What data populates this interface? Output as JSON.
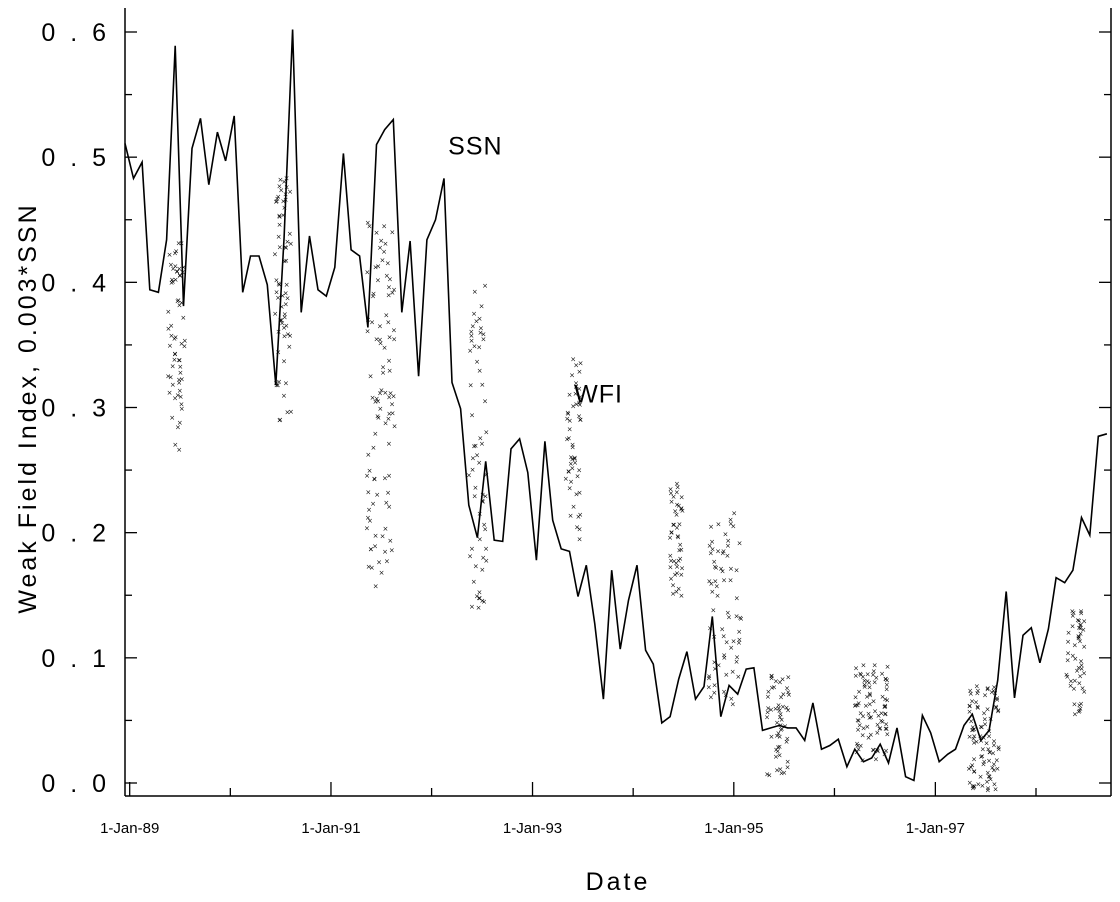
{
  "chart_data": {
    "type": "line",
    "xlabel": "Date",
    "ylabel": "Weak  Field  Index,  0.003*SSN",
    "xlim": [
      "1988-12-15",
      "1998-09-30"
    ],
    "ylim": [
      0.0,
      0.6
    ],
    "x_ticks": [
      "1989-01-01",
      "1991-01-01",
      "1993-01-01",
      "1995-01-01",
      "1997-01-01"
    ],
    "x_tick_labels": [
      "1-Jan-89",
      "1-Jan-91",
      "1-Jan-93",
      "1-Jan-95",
      "1-Jan-97"
    ],
    "y_ticks": [
      0.0,
      0.1,
      0.2,
      0.3,
      0.4,
      0.5,
      0.6
    ],
    "y_tick_labels": [
      "0 . 0",
      "0 . 1",
      "0 . 2",
      "0 . 3",
      "0 . 4",
      "0 . 5",
      "0 . 6"
    ],
    "annotations": [
      {
        "text": "SSN",
        "x": "1992-03-01",
        "y": 0.502
      },
      {
        "text": "WFI",
        "x": "1993-06-01",
        "y": 0.304
      }
    ],
    "series": [
      {
        "style": "line",
        "x": [
          "1988-12-15",
          "1989-01-15",
          "1989-02-15",
          "1989-03-15",
          "1989-04-15",
          "1989-05-15",
          "1989-06-15",
          "1989-07-15",
          "1989-08-15",
          "1989-09-15",
          "1989-10-15",
          "1989-11-15",
          "1989-12-15",
          "1990-01-15",
          "1990-02-15",
          "1990-03-15",
          "1990-04-15",
          "1990-05-15",
          "1990-06-15",
          "1990-07-15",
          "1990-08-15",
          "1990-09-15",
          "1990-10-15",
          "1990-11-15",
          "1990-12-15",
          "1991-01-15",
          "1991-02-15",
          "1991-03-15",
          "1991-04-15",
          "1991-05-15",
          "1991-06-15",
          "1991-07-15",
          "1991-08-15",
          "1991-09-15",
          "1991-10-15",
          "1991-11-15",
          "1991-12-15",
          "1992-01-15",
          "1992-02-15",
          "1992-03-15",
          "1992-04-15",
          "1992-05-15",
          "1992-06-15",
          "1992-07-15",
          "1992-08-15",
          "1992-09-15",
          "1992-10-15",
          "1992-11-15",
          "1992-12-15",
          "1993-01-15",
          "1993-02-15",
          "1993-03-15",
          "1993-04-15",
          "1993-05-15",
          "1993-06-15",
          "1993-07-15",
          "1993-08-15",
          "1993-09-15",
          "1993-10-15",
          "1993-11-15",
          "1993-12-15",
          "1994-01-15",
          "1994-02-15",
          "1994-03-15",
          "1994-04-15",
          "1994-05-15",
          "1994-06-15",
          "1994-07-15",
          "1994-08-15",
          "1994-09-15",
          "1994-10-15",
          "1994-11-15",
          "1994-12-15",
          "1995-01-15",
          "1995-02-15",
          "1995-03-15",
          "1995-04-15",
          "1995-05-15",
          "1995-06-15",
          "1995-07-15",
          "1995-08-15",
          "1995-09-15",
          "1995-10-15",
          "1995-11-15",
          "1995-12-15",
          "1996-01-15",
          "1996-02-15",
          "1996-03-15",
          "1996-04-15",
          "1996-05-15",
          "1996-06-15",
          "1996-07-15",
          "1996-08-15",
          "1996-09-15",
          "1996-10-15",
          "1996-11-15",
          "1996-12-15",
          "1997-01-15",
          "1997-02-15",
          "1997-03-15",
          "1997-04-15",
          "1997-05-15",
          "1997-06-15",
          "1997-07-15",
          "1997-08-15",
          "1997-09-15",
          "1997-10-15",
          "1997-11-15",
          "1997-12-15",
          "1998-01-15",
          "1998-02-15",
          "1998-03-15",
          "1998-04-15",
          "1998-05-15",
          "1998-06-15",
          "1998-07-15",
          "1998-08-15",
          "1998-09-15"
        ],
        "y": [
          0.511,
          0.483,
          0.496,
          0.394,
          0.392,
          0.434,
          0.589,
          0.381,
          0.507,
          0.531,
          0.478,
          0.52,
          0.497,
          0.533,
          0.392,
          0.421,
          0.421,
          0.398,
          0.318,
          0.436,
          0.602,
          0.376,
          0.437,
          0.394,
          0.389,
          0.412,
          0.503,
          0.426,
          0.421,
          0.364,
          0.51,
          0.522,
          0.53,
          0.376,
          0.433,
          0.325,
          0.434,
          0.45,
          0.483,
          0.32,
          0.299,
          0.222,
          0.196,
          0.257,
          0.194,
          0.193,
          0.267,
          0.275,
          0.248,
          0.178,
          0.273,
          0.21,
          0.187,
          0.185,
          0.149,
          0.174,
          0.127,
          0.067,
          0.17,
          0.107,
          0.146,
          0.174,
          0.106,
          0.095,
          0.048,
          0.053,
          0.083,
          0.105,
          0.067,
          0.077,
          0.133,
          0.053,
          0.078,
          0.071,
          0.091,
          0.092,
          0.042,
          0.044,
          0.046,
          0.044,
          0.044,
          0.034,
          0.064,
          0.027,
          0.03,
          0.035,
          0.013,
          0.027,
          0.017,
          0.02,
          0.031,
          0.016,
          0.044,
          0.005,
          0.002,
          0.054,
          0.04,
          0.017,
          0.023,
          0.027,
          0.046,
          0.055,
          0.034,
          0.042,
          0.082,
          0.153,
          0.068,
          0.118,
          0.124,
          0.096,
          0.123,
          0.164,
          0.16,
          0.17,
          0.212,
          0.198,
          0.277,
          0.279
        ]
      },
      {
        "style": "scatter",
        "marker": "x",
        "clusters": [
          {
            "x0": "1989-05-20",
            "x1": "1989-07-20",
            "n": 60,
            "ymin": 0.265,
            "ymax": 0.432
          },
          {
            "x0": "1990-06-10",
            "x1": "1990-08-10",
            "n": 65,
            "ymin": 0.288,
            "ymax": 0.485
          },
          {
            "x0": "1991-05-10",
            "x1": "1991-08-20",
            "n": 95,
            "ymin": 0.155,
            "ymax": 0.45
          },
          {
            "x0": "1992-05-15",
            "x1": "1992-07-20",
            "n": 60,
            "ymin": 0.138,
            "ymax": 0.398
          },
          {
            "x0": "1993-05-01",
            "x1": "1993-06-25",
            "n": 50,
            "ymin": 0.192,
            "ymax": 0.34
          },
          {
            "x0": "1994-05-15",
            "x1": "1994-06-30",
            "n": 45,
            "ymin": 0.148,
            "ymax": 0.242
          },
          {
            "x0": "1994-10-01",
            "x1": "1995-01-30",
            "n": 70,
            "ymin": 0.063,
            "ymax": 0.222
          },
          {
            "x0": "1995-05-01",
            "x1": "1995-07-20",
            "n": 55,
            "ymin": 0.002,
            "ymax": 0.088
          },
          {
            "x0": "1996-03-15",
            "x1": "1996-07-15",
            "n": 85,
            "ymin": 0.018,
            "ymax": 0.097
          },
          {
            "x0": "1997-05-01",
            "x1": "1997-08-20",
            "n": 90,
            "ymin": -0.006,
            "ymax": 0.078
          },
          {
            "x0": "1998-04-20",
            "x1": "1998-06-25",
            "n": 50,
            "ymin": 0.055,
            "ymax": 0.145
          }
        ]
      }
    ],
    "grid": false,
    "legend": "none"
  }
}
